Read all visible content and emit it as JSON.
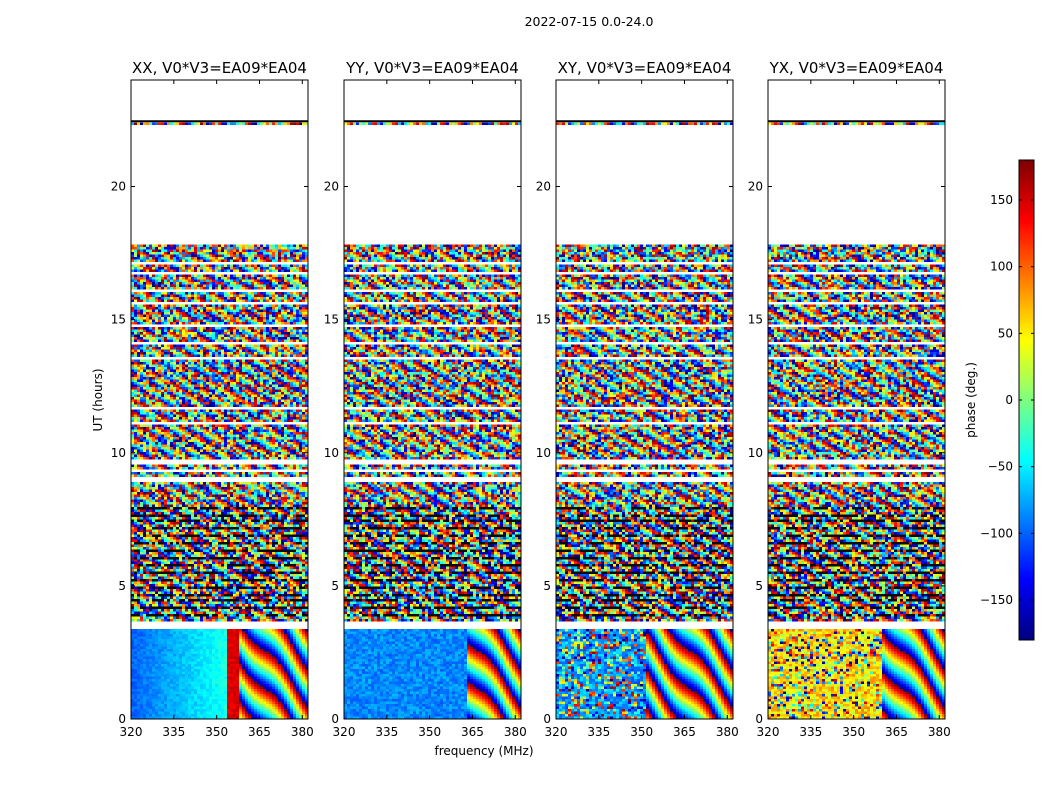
{
  "figure": {
    "suptitle": "2022-07-15 0.0-24.0"
  },
  "chart_data": {
    "type": "heatmap",
    "xlabel": "frequency (MHz)",
    "ylabel": "UT (hours)",
    "xlim": [
      320,
      382
    ],
    "ylim": [
      0,
      24
    ],
    "xticks": [
      320,
      335,
      350,
      365,
      380
    ],
    "yticks": [
      0,
      5,
      10,
      15,
      20
    ],
    "panels": [
      {
        "title": "XX, V0*V3=EA09*EA04",
        "low_band": "ramp"
      },
      {
        "title": "YY, V0*V3=EA09*EA04",
        "low_band": "flat"
      },
      {
        "title": "XY, V0*V3=EA09*EA04",
        "low_band": "noise"
      },
      {
        "title": "YX, V0*V3=EA09*EA04",
        "low_band": "warm"
      }
    ],
    "colorbar": {
      "label": "phase (deg.)",
      "colormap": "jet",
      "range": [
        -180,
        180
      ],
      "ticks": [
        150,
        100,
        50,
        0,
        -50,
        -100,
        -150
      ],
      "tick_labels": [
        "150",
        "100",
        "50",
        "0",
        "−50",
        "−100",
        "−150"
      ]
    },
    "data_coverage_hours": {
      "start": 0,
      "end": 22.45,
      "gap": [
        17.8,
        22.35
      ]
    }
  }
}
